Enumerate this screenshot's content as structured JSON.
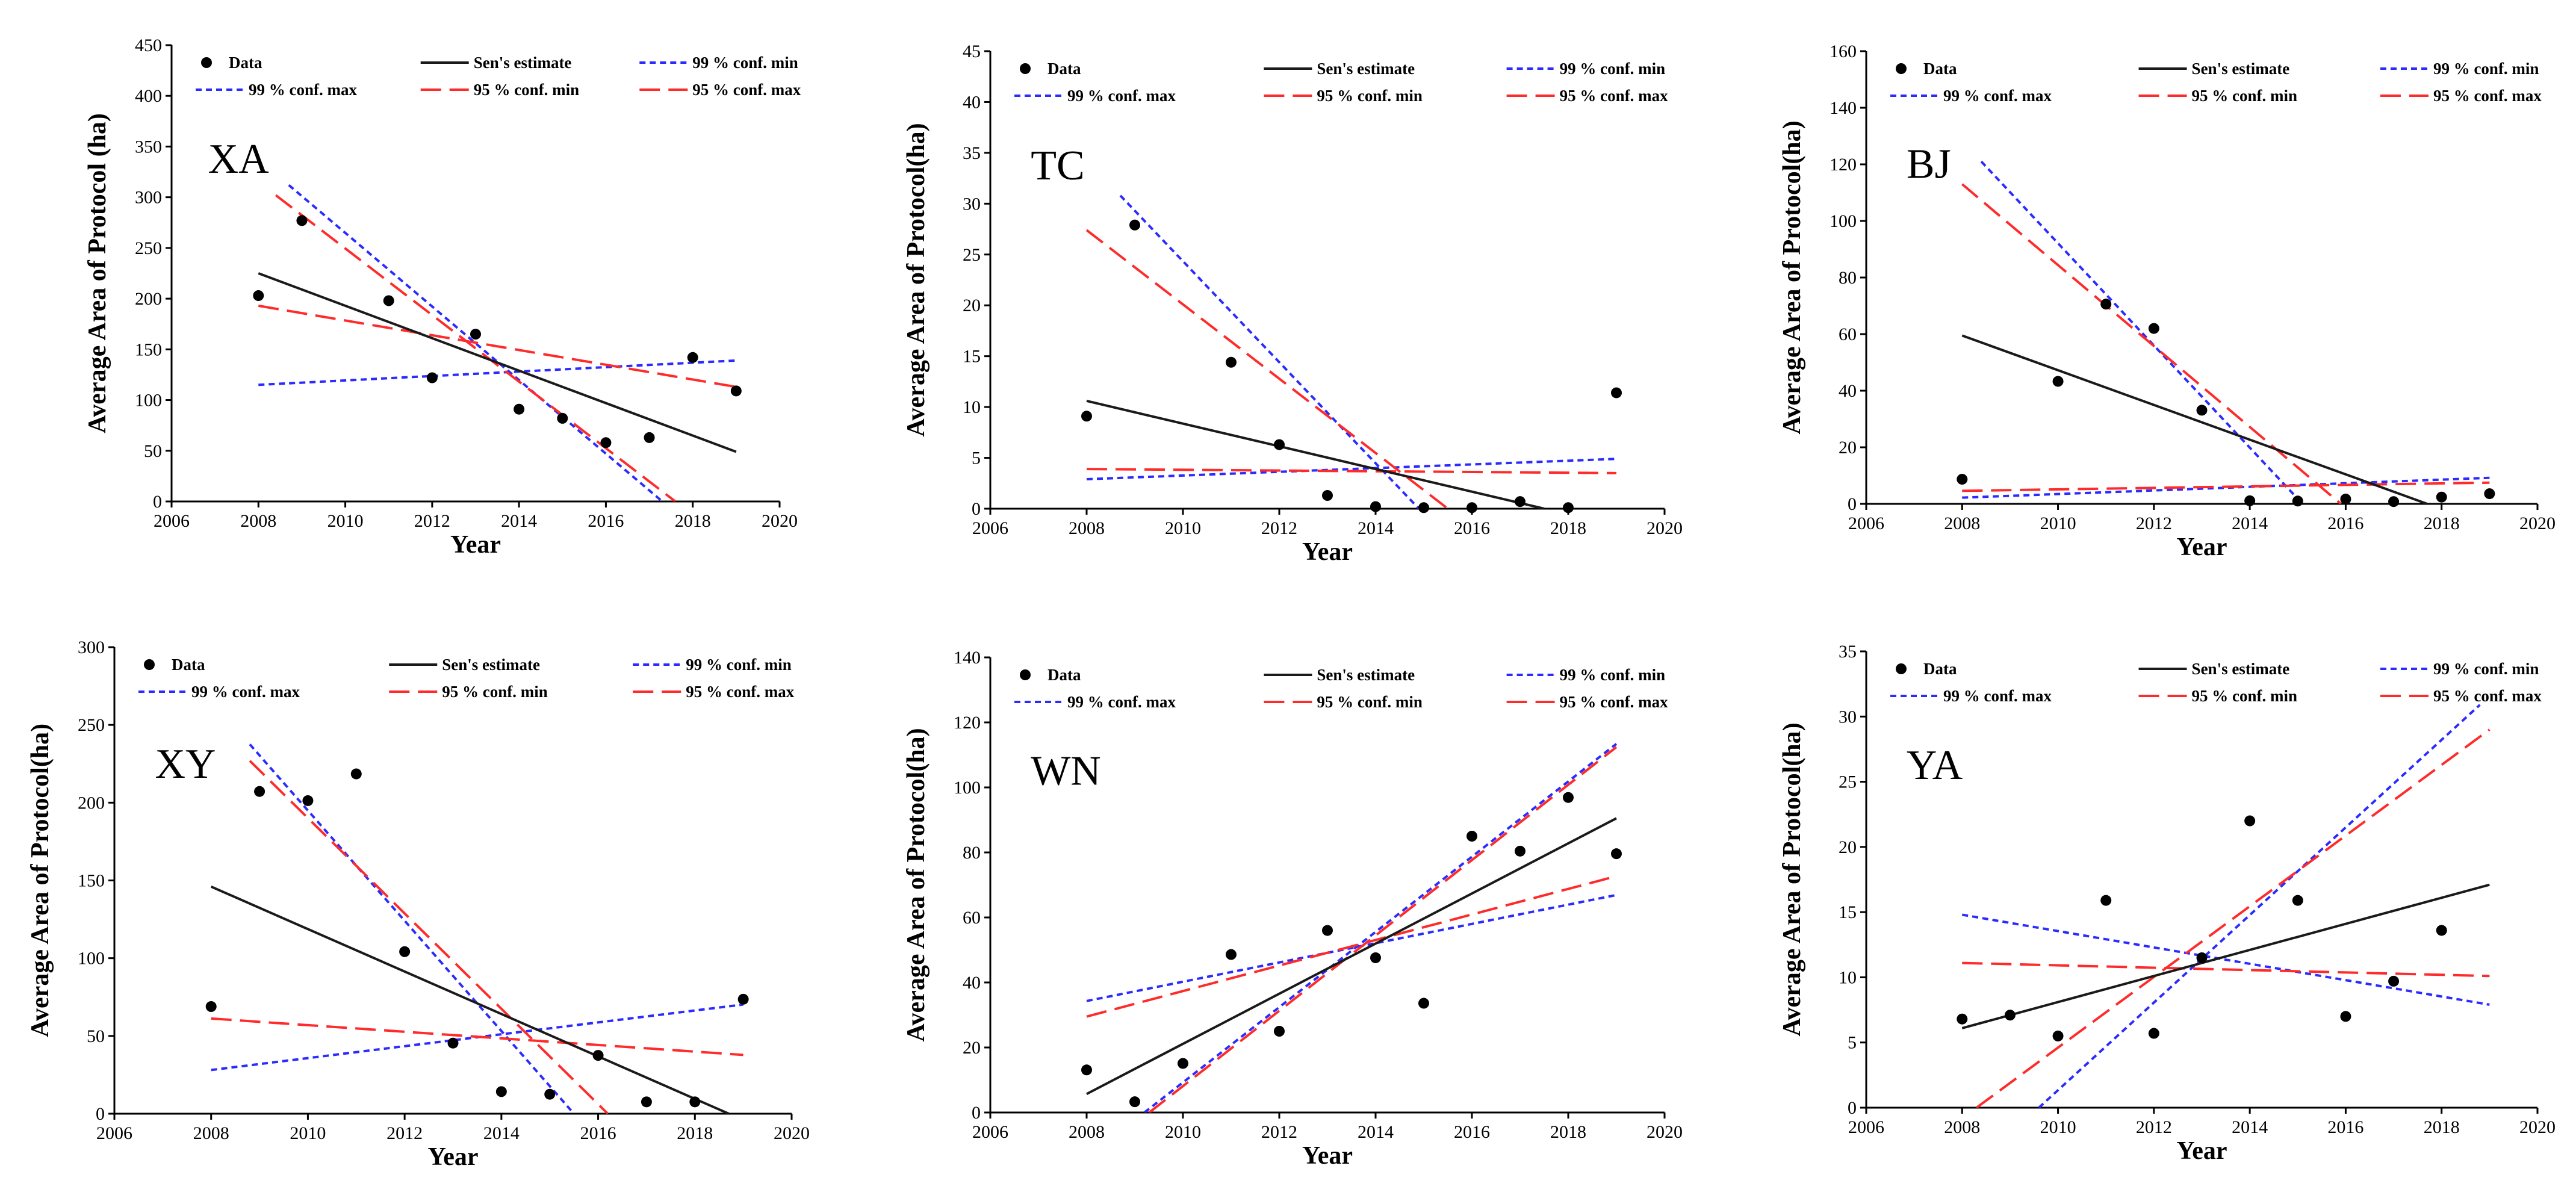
{
  "legend_labels": {
    "data": "Data",
    "sen": "Sen's estimate",
    "min99": "99 % conf. min",
    "max99": "99 % conf. max",
    "min95": "95 % conf. min",
    "max95": "95 % conf. max"
  },
  "colors": {
    "data": "#000000",
    "sen": "#1a1a1a",
    "conf99": "#2b2bff",
    "conf95": "#ff2b2b"
  },
  "chart_data": [
    {
      "type": "scatter",
      "label": "XA",
      "xlabel": "Year",
      "ylabel": "Average Area of Protocol (ha)",
      "xlim": [
        2006,
        2020
      ],
      "ylim": [
        0,
        450
      ],
      "xticks": [
        2006,
        2008,
        2010,
        2012,
        2014,
        2016,
        2018,
        2020
      ],
      "yticks": [
        0,
        50,
        100,
        150,
        200,
        250,
        300,
        350,
        400,
        450
      ],
      "points": [
        [
          2008,
          203
        ],
        [
          2009,
          277
        ],
        [
          2011,
          198
        ],
        [
          2012,
          122
        ],
        [
          2013,
          165
        ],
        [
          2014,
          91
        ],
        [
          2015,
          82
        ],
        [
          2016,
          58
        ],
        [
          2017,
          63
        ],
        [
          2018,
          142
        ],
        [
          2019,
          109
        ]
      ],
      "sen": [
        [
          2008,
          225
        ],
        [
          2019,
          49
        ]
      ],
      "min99": [
        [
          2008,
          115
        ],
        [
          2019,
          139
        ]
      ],
      "max99": [
        [
          2008.7,
          312
        ],
        [
          2017.3,
          0
        ]
      ],
      "min95": [
        [
          2008.4,
          302
        ],
        [
          2017.6,
          0
        ]
      ],
      "max95": [
        [
          2008,
          193
        ],
        [
          2019,
          113
        ]
      ]
    },
    {
      "type": "scatter",
      "label": "TC",
      "xlabel": "Year",
      "ylabel": "Average Area of Protocol(ha)",
      "xlim": [
        2006,
        2020
      ],
      "ylim": [
        0,
        45
      ],
      "xticks": [
        2006,
        2008,
        2010,
        2012,
        2014,
        2016,
        2018,
        2020
      ],
      "yticks": [
        0,
        5,
        10,
        15,
        20,
        25,
        30,
        35,
        40,
        45
      ],
      "points": [
        [
          2008,
          9.1
        ],
        [
          2009,
          27.9
        ],
        [
          2011,
          14.4
        ],
        [
          2012,
          6.3
        ],
        [
          2013,
          1.3
        ],
        [
          2014,
          0.2
        ],
        [
          2015,
          0.1
        ],
        [
          2016,
          0.1
        ],
        [
          2017,
          0.7
        ],
        [
          2018,
          0.1
        ],
        [
          2019,
          11.4
        ]
      ],
      "sen": [
        [
          2008,
          10.6
        ],
        [
          2017.5,
          0
        ]
      ],
      "min99": [
        [
          2008,
          2.9
        ],
        [
          2019,
          4.9
        ]
      ],
      "max99": [
        [
          2008.7,
          30.8
        ],
        [
          2014.9,
          0
        ]
      ],
      "min95": [
        [
          2008,
          27.4
        ],
        [
          2015.5,
          0
        ]
      ],
      "max95": [
        [
          2008,
          3.9
        ],
        [
          2019,
          3.5
        ]
      ]
    },
    {
      "type": "scatter",
      "label": "BJ",
      "xlabel": "Year",
      "ylabel": "Average Area of Protocol(ha)",
      "xlim": [
        2006,
        2020
      ],
      "ylim": [
        0,
        160
      ],
      "xticks": [
        2006,
        2008,
        2010,
        2012,
        2014,
        2016,
        2018,
        2020
      ],
      "yticks": [
        0,
        20,
        40,
        60,
        80,
        100,
        120,
        140,
        160
      ],
      "points": [
        [
          2008,
          8.7
        ],
        [
          2010,
          43.3
        ],
        [
          2011,
          70.6
        ],
        [
          2012,
          62.0
        ],
        [
          2013,
          33.1
        ],
        [
          2014,
          1.1
        ],
        [
          2015,
          1.0
        ],
        [
          2016,
          1.7
        ],
        [
          2017,
          0.8
        ],
        [
          2018,
          2.4
        ],
        [
          2019,
          3.6
        ]
      ],
      "sen": [
        [
          2008,
          59.5
        ],
        [
          2017.7,
          0
        ]
      ],
      "min99": [
        [
          2008,
          2.2
        ],
        [
          2019,
          9.2
        ]
      ],
      "max99": [
        [
          2008.4,
          121
        ],
        [
          2015.1,
          0
        ]
      ],
      "min95": [
        [
          2008,
          113
        ],
        [
          2015.9,
          0
        ]
      ],
      "max95": [
        [
          2008,
          4.6
        ],
        [
          2019,
          7.5
        ]
      ]
    },
    {
      "type": "scatter",
      "label": "XY",
      "xlabel": "Year",
      "ylabel": "Average Area of Protocol(ha)",
      "xlim": [
        2006,
        2020
      ],
      "ylim": [
        0,
        300
      ],
      "xticks": [
        2006,
        2008,
        2010,
        2012,
        2014,
        2016,
        2018,
        2020
      ],
      "yticks": [
        0,
        50,
        100,
        150,
        200,
        250,
        300
      ],
      "points": [
        [
          2008,
          68.9
        ],
        [
          2009,
          207.2
        ],
        [
          2010,
          201.3
        ],
        [
          2011,
          218.5
        ],
        [
          2012,
          104.2
        ],
        [
          2013,
          45.4
        ],
        [
          2014,
          14.2
        ],
        [
          2015,
          12.5
        ],
        [
          2016,
          37.5
        ],
        [
          2017,
          7.6
        ],
        [
          2018,
          7.6
        ],
        [
          2019,
          73.6
        ]
      ],
      "sen": [
        [
          2008,
          146
        ],
        [
          2018.7,
          0
        ]
      ],
      "min99": [
        [
          2008,
          28.1
        ],
        [
          2019,
          70.2
        ]
      ],
      "max99": [
        [
          2008.8,
          237.5
        ],
        [
          2015.5,
          0
        ]
      ],
      "min95": [
        [
          2008.8,
          226.9
        ],
        [
          2016.2,
          0
        ]
      ],
      "max95": [
        [
          2008,
          61.2
        ],
        [
          2019,
          37.8
        ]
      ]
    },
    {
      "type": "scatter",
      "label": "WN",
      "xlabel": "Year",
      "ylabel": "Average Area of Protocol(ha)",
      "xlim": [
        2006,
        2020
      ],
      "ylim": [
        0,
        140
      ],
      "xticks": [
        2006,
        2008,
        2010,
        2012,
        2014,
        2016,
        2018,
        2020
      ],
      "yticks": [
        0,
        20,
        40,
        60,
        80,
        100,
        120,
        140
      ],
      "points": [
        [
          2008,
          13.1
        ],
        [
          2009,
          3.3
        ],
        [
          2010,
          15.1
        ],
        [
          2011,
          48.6
        ],
        [
          2012,
          25.0
        ],
        [
          2013,
          56.0
        ],
        [
          2014,
          47.6
        ],
        [
          2015,
          33.6
        ],
        [
          2016,
          85.0
        ],
        [
          2017,
          80.4
        ],
        [
          2018,
          96.9
        ],
        [
          2019,
          79.6
        ]
      ],
      "sen": [
        [
          2008,
          5.7
        ],
        [
          2019,
          90.5
        ]
      ],
      "min99": [
        [
          2008,
          34.3
        ],
        [
          2019,
          66.9
        ]
      ],
      "max99": [
        [
          2009.2,
          0
        ],
        [
          2019,
          113.4
        ]
      ],
      "min95": [
        [
          2008,
          29.5
        ],
        [
          2019,
          72.7
        ]
      ],
      "max95": [
        [
          2009.3,
          0
        ],
        [
          2019,
          112.4
        ]
      ]
    },
    {
      "type": "scatter",
      "label": "YA",
      "xlabel": "Year",
      "ylabel": "Average Area of Protocol(ha)",
      "xlim": [
        2006,
        2020
      ],
      "ylim": [
        0,
        35
      ],
      "xticks": [
        2006,
        2008,
        2010,
        2012,
        2014,
        2016,
        2018,
        2020
      ],
      "yticks": [
        0,
        5,
        10,
        15,
        20,
        25,
        30,
        35
      ],
      "points": [
        [
          2008,
          6.8
        ],
        [
          2009,
          7.1
        ],
        [
          2010,
          5.5
        ],
        [
          2011,
          15.9
        ],
        [
          2012,
          5.7
        ],
        [
          2013,
          11.5
        ],
        [
          2014,
          22.0
        ],
        [
          2015,
          15.9
        ],
        [
          2016,
          7.0
        ],
        [
          2017,
          9.7
        ],
        [
          2018,
          13.6
        ]
      ],
      "sen": [
        [
          2008,
          6.1
        ],
        [
          2019,
          17.1
        ]
      ],
      "min99": [
        [
          2008,
          14.8
        ],
        [
          2019,
          7.9
        ]
      ],
      "max99": [
        [
          2009.6,
          0
        ],
        [
          2018.8,
          30.9
        ]
      ],
      "min95": [
        [
          2008.3,
          0
        ],
        [
          2019,
          29.0
        ]
      ],
      "max95": [
        [
          2008,
          11.1
        ],
        [
          2019,
          10.1
        ]
      ]
    }
  ]
}
